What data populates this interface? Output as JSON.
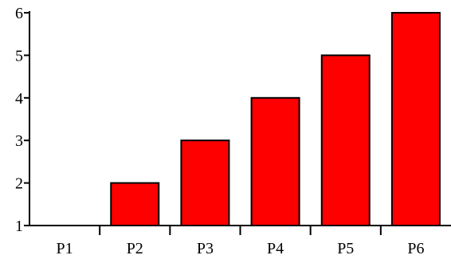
{
  "chart_data": {
    "type": "bar",
    "categories": [
      "P1",
      "P2",
      "P3",
      "P4",
      "P5",
      "P6"
    ],
    "values": [
      1,
      2,
      3,
      4,
      5,
      6
    ],
    "title": "",
    "xlabel": "",
    "ylabel": "",
    "ylim": [
      1,
      6
    ],
    "yticks": [
      "1",
      "2",
      "3",
      "4",
      "5",
      "6"
    ],
    "grid": false,
    "legend": "none",
    "bar_color": "#ff0000",
    "bar_edge_color": "#000000"
  }
}
